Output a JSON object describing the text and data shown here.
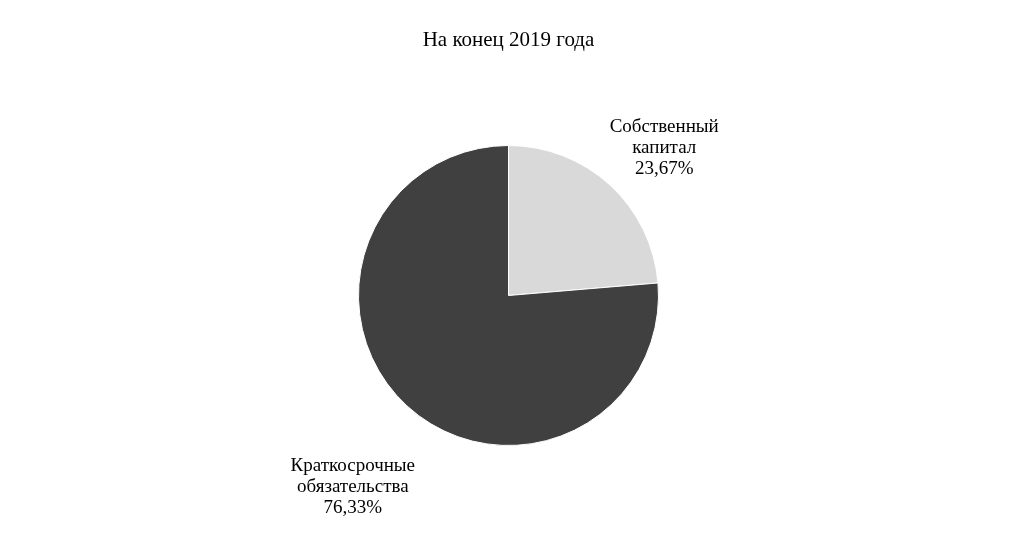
{
  "chart_data": {
    "type": "pie",
    "title": "На конец 2019  года",
    "categories": [
      "Собственный капитал",
      "Краткосрочные обязательства"
    ],
    "values": [
      23.67,
      76.33
    ],
    "colors": [
      "#d9d9d9",
      "#404040"
    ],
    "value_labels": [
      "23,67%",
      "76,33%"
    ]
  }
}
